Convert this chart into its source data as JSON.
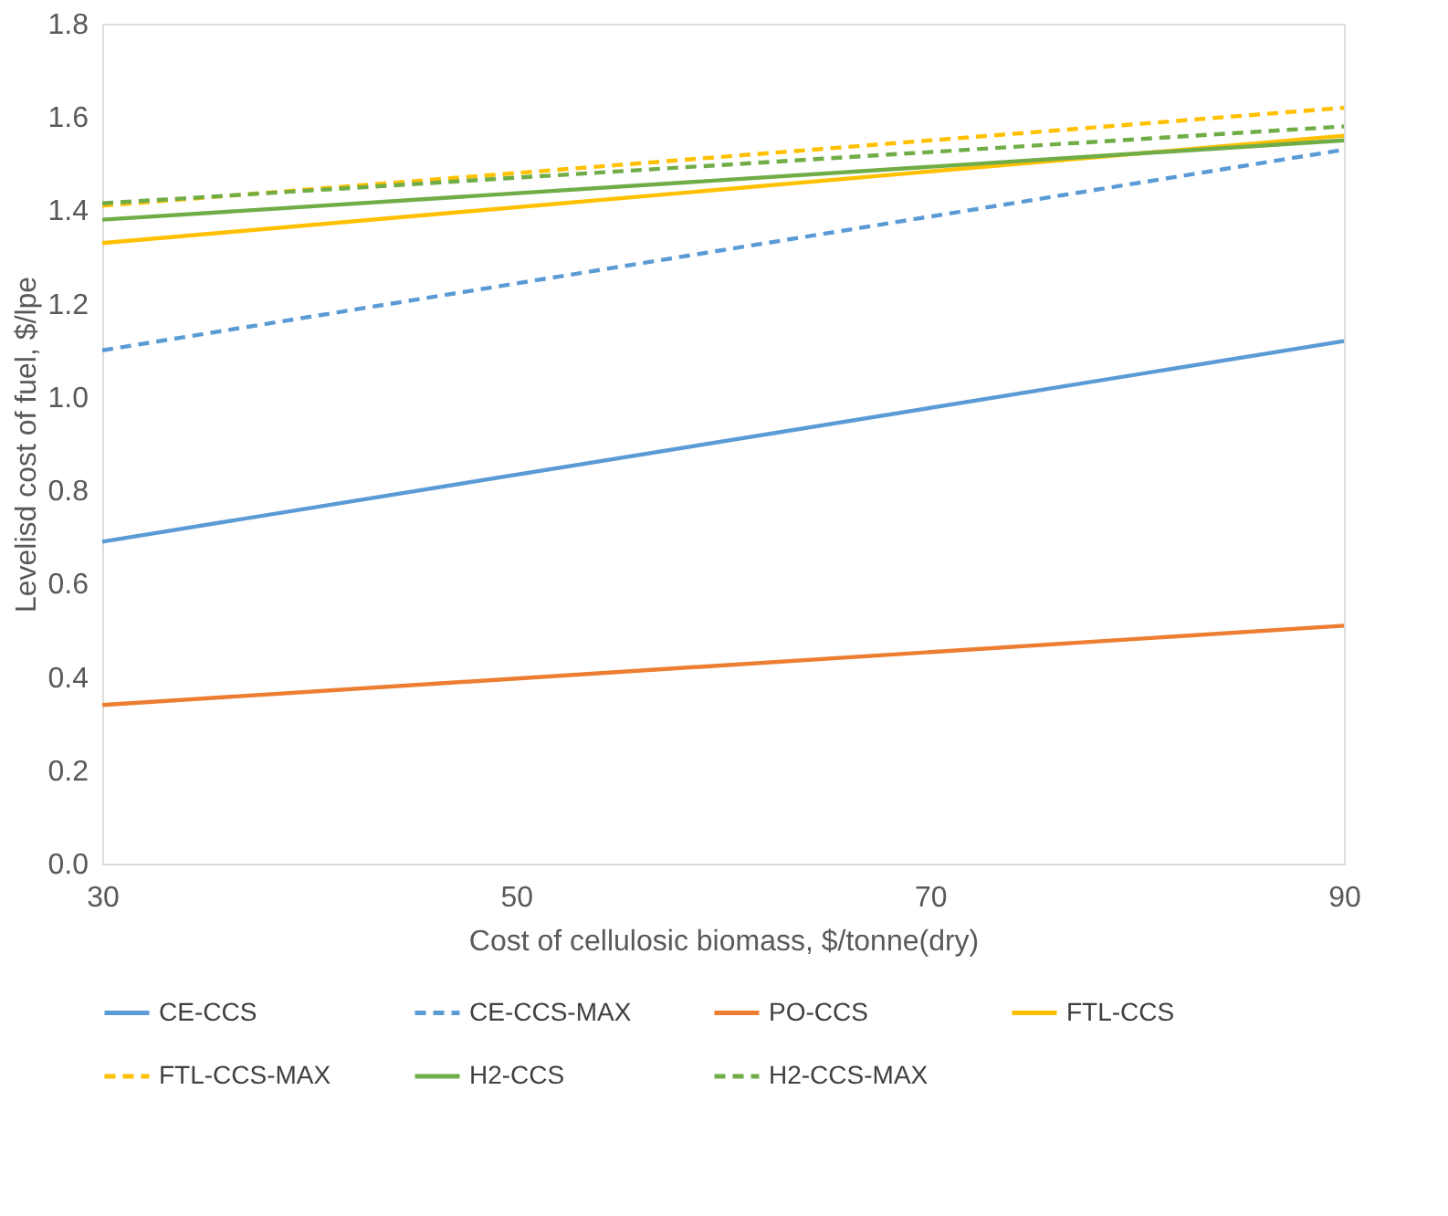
{
  "chart_data": {
    "type": "line",
    "xlabel": "Cost of cellulosic biomass, $/tonne(dry)",
    "ylabel": "Levelisd cost of fuel, $/lpe",
    "x": [
      30,
      90
    ],
    "xlim": [
      30,
      90
    ],
    "xticks": [
      30,
      50,
      70,
      90
    ],
    "ylim": [
      0,
      1.8
    ],
    "yticks": [
      {
        "value": 0,
        "label": "0.0"
      },
      {
        "value": 0.2,
        "label": "0.2"
      },
      {
        "value": 0.4,
        "label": "0.4"
      },
      {
        "value": 0.6,
        "label": "0.6"
      },
      {
        "value": 0.8,
        "label": "0.8"
      },
      {
        "value": 1.0,
        "label": "1.0"
      },
      {
        "value": 1.2,
        "label": "1.2"
      },
      {
        "value": 1.4,
        "label": "1.4"
      },
      {
        "value": 1.6,
        "label": "1.6"
      },
      {
        "value": 1.8,
        "label": "1.8"
      }
    ],
    "grid": false,
    "legend": "bottom",
    "marker": "none",
    "series": [
      {
        "name": "CE-CCS",
        "color": "#5b9bd5",
        "values": [
          0.69,
          1.12
        ],
        "line_style": "solid"
      },
      {
        "name": "CE-CCS-MAX",
        "color": "#5b9bd5",
        "values": [
          1.1,
          1.53
        ],
        "line_style": "dashed"
      },
      {
        "name": "PO-CCS",
        "color": "#ed7d31",
        "values": [
          0.34,
          0.51
        ],
        "line_style": "solid"
      },
      {
        "name": "FTL-CCS",
        "color": "#ffc000",
        "values": [
          1.33,
          1.56
        ],
        "line_style": "solid"
      },
      {
        "name": "FTL-CCS-MAX",
        "color": "#ffc000",
        "values": [
          1.41,
          1.62
        ],
        "line_style": "dashed"
      },
      {
        "name": "H2-CCS",
        "color": "#70ad47",
        "values": [
          1.38,
          1.55
        ],
        "line_style": "solid"
      },
      {
        "name": "H2-CCS-MAX",
        "color": "#70ad47",
        "values": [
          1.415,
          1.58
        ],
        "line_style": "dashed"
      }
    ]
  }
}
